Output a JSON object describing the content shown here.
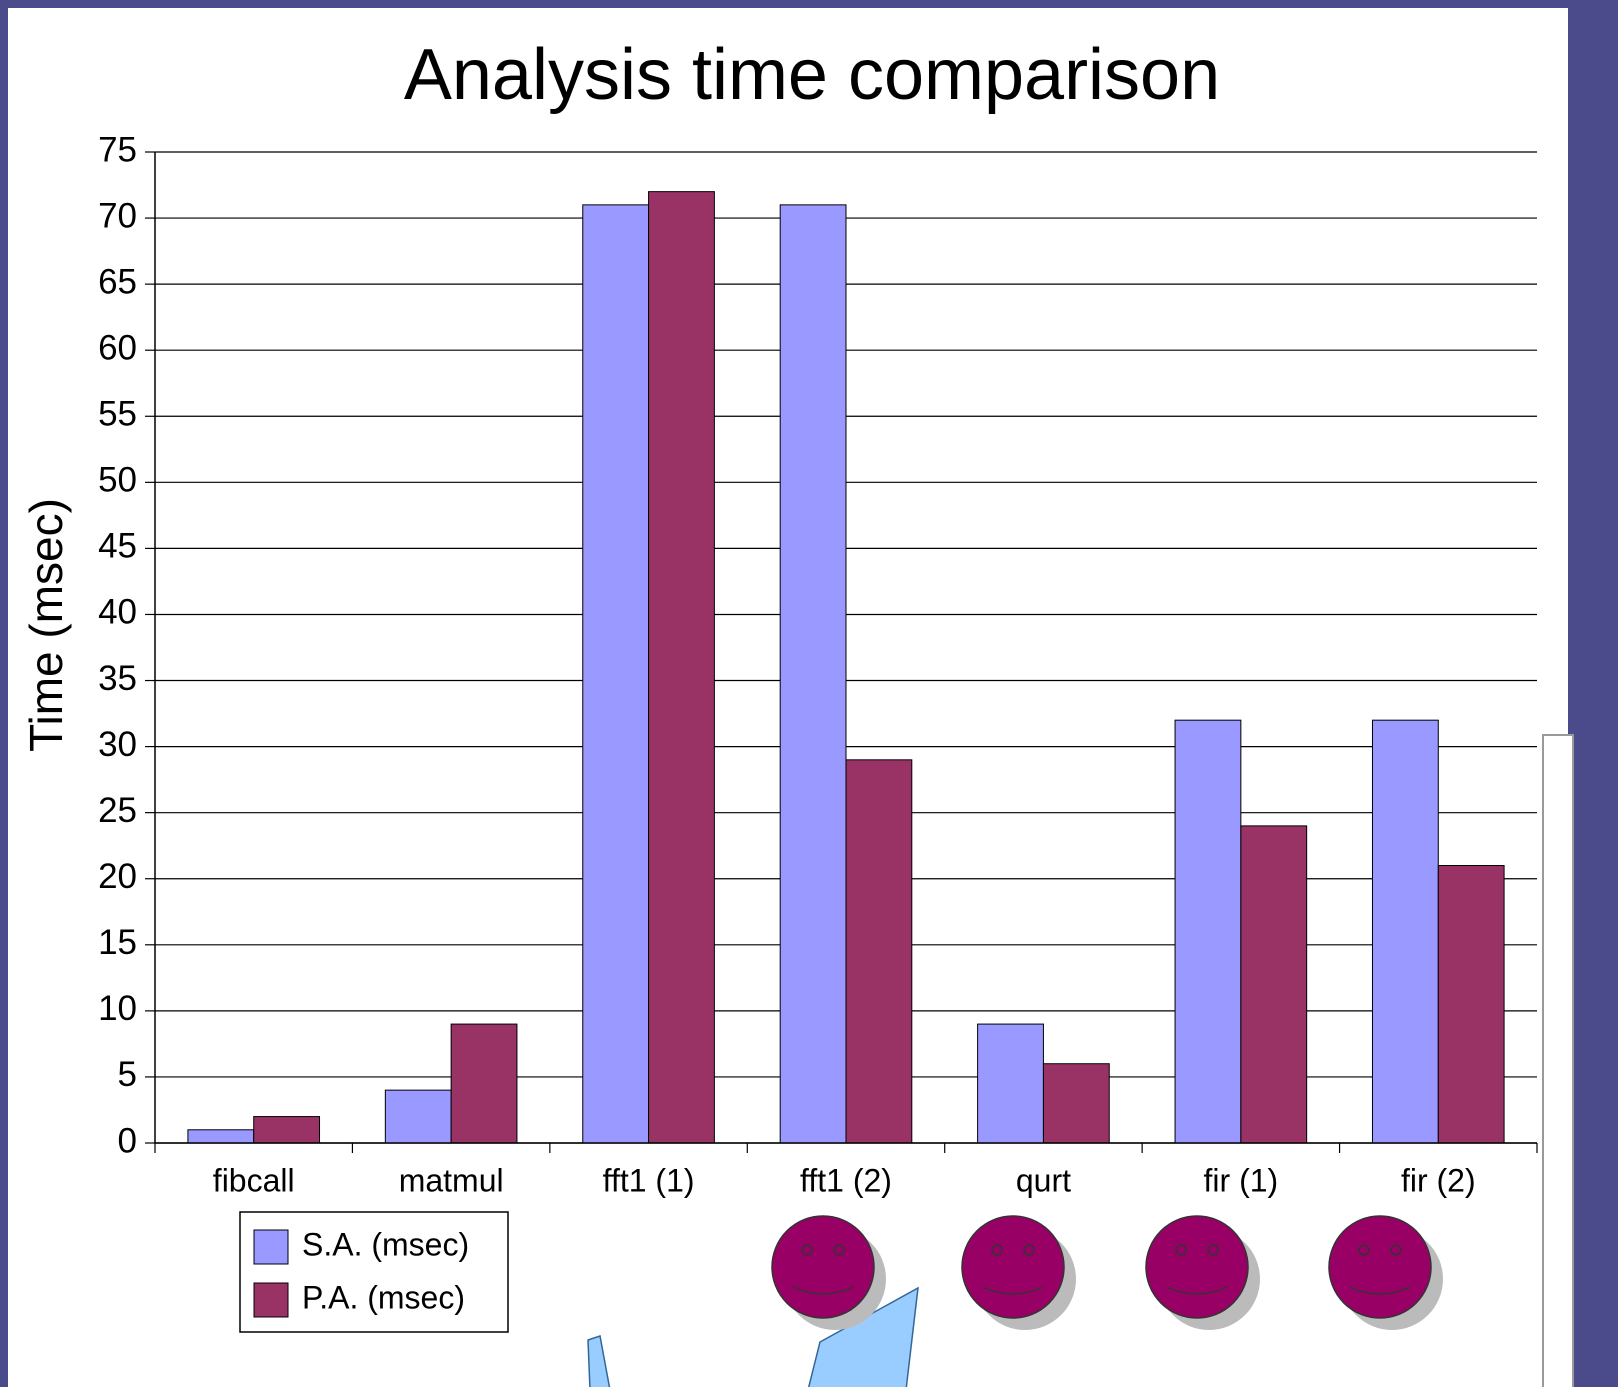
{
  "chart_data": {
    "type": "bar",
    "title": "Analysis time comparison",
    "y_label": "Time (msec)",
    "categories": [
      "fibcall",
      "matmul",
      "fft1 (1)",
      "fft1 (2)",
      "qurt",
      "fir (1)",
      "fir (2)"
    ],
    "series": [
      {
        "name": "S.A. (msec)",
        "color": "#9999ff",
        "values": [
          1,
          4,
          71,
          71,
          9,
          32,
          32
        ]
      },
      {
        "name": "P.A. (msec)",
        "color": "#993366",
        "values": [
          2,
          9,
          72,
          29,
          6,
          24,
          21
        ]
      }
    ],
    "ylim": [
      0,
      75
    ],
    "yticks": [
      0,
      5,
      10,
      15,
      20,
      25,
      30,
      35,
      40,
      45,
      50,
      55,
      60,
      65,
      70,
      75
    ],
    "grid": true
  }
}
